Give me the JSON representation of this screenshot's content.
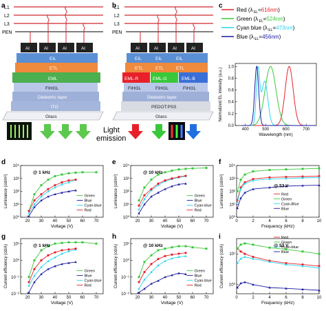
{
  "labels": {
    "a": "a",
    "b": "b",
    "c": "c",
    "d": "d",
    "e": "e",
    "f": "f",
    "g": "g",
    "h": "h",
    "i": "i"
  },
  "schematic": {
    "lines": [
      "L1",
      "L2",
      "L3",
      "PEN"
    ],
    "al": "Al",
    "layers_a": [
      "EIL",
      "ETL",
      "EML",
      "FIHGL",
      "Dielectric layer",
      "ITO",
      "Glass"
    ],
    "layers_b": [
      "EIL",
      "ETL",
      "EML-R",
      "EML-G",
      "EML-B",
      "FIHGL",
      "Dielectric layer",
      "PEDOT:PSS",
      "Glass"
    ],
    "light_emission": "Light\nemission",
    "light_1": "Light",
    "light_2": "emission"
  },
  "colors": {
    "red": "#e8202a",
    "green": "#39c83a",
    "cyan": "#2ad5f0",
    "blue": "#1a1aa0",
    "eil": "#5b8fd4",
    "etl": "#f08a3c",
    "eml": "#4caf50",
    "fihgl": "#b9c7e8",
    "diel": "#c7cfe6",
    "ito": "#a5b6dc"
  },
  "chart_data": [
    {
      "id": "c",
      "type": "line",
      "xlabel": "Wavelength (nm)",
      "ylabel": "Normalized EL intensity (a.u.)",
      "xlim": [
        350,
        750
      ],
      "ylim": [
        0,
        1.05
      ],
      "xticks": [
        "400",
        "500",
        "600",
        "700"
      ],
      "yticks": [
        "0.0",
        "0.2",
        "0.4",
        "0.6",
        "0.8",
        "1.0"
      ],
      "legend": [
        {
          "name": "Red (λ",
          "sub": "EL",
          "eq": "=",
          "val": "616nm"
        },
        {
          "name": "Green (λ",
          "sub": "EL",
          "eq": "=",
          "val": "524nm"
        },
        {
          "name": "Cyan blue (λ",
          "sub": "EL",
          "eq": "=",
          "val": "473nm"
        },
        {
          "name": "Blue (λ",
          "sub": "EL",
          "eq": "=",
          "val": "456nm"
        }
      ],
      "series": [
        {
          "name": "Red",
          "peak": 616,
          "width": 28
        },
        {
          "name": "Green",
          "peak": 524,
          "width": 38
        },
        {
          "name": "Cyan blue",
          "peak": 473,
          "width": 30
        },
        {
          "name": "Blue",
          "peak": 456,
          "width": 14
        }
      ]
    },
    {
      "id": "d",
      "type": "line",
      "annotation": "@ 1 kHz",
      "xlabel": "Voltage (V)",
      "ylabel": "Luminance (cd/m²)",
      "xlim": [
        15,
        75
      ],
      "ylim_log": [
        0,
        4
      ],
      "xticks": [
        "20",
        "30",
        "40",
        "50",
        "60",
        "70"
      ],
      "yticks": [
        "10⁰",
        "10¹",
        "10²",
        "10³",
        "10⁴"
      ],
      "legend": [
        "Green",
        "Blue",
        "Cyan-blue",
        "Red"
      ],
      "series": [
        {
          "name": "Green",
          "x": [
            21,
            25,
            30,
            35,
            40,
            45,
            50,
            55,
            60,
            70
          ],
          "y": [
            3,
            60,
            300,
            800,
            1500,
            2000,
            2500,
            2800,
            3000,
            3000
          ]
        },
        {
          "name": "Blue",
          "x": [
            21,
            25,
            30,
            35,
            40,
            45,
            50,
            55
          ],
          "y": [
            1.2,
            6,
            20,
            40,
            60,
            80,
            100,
            120
          ]
        },
        {
          "name": "Cyan-blue",
          "x": [
            21,
            25,
            30,
            35,
            40,
            45,
            50,
            55
          ],
          "y": [
            2,
            10,
            40,
            100,
            200,
            350,
            500,
            800
          ]
        },
        {
          "name": "Red",
          "x": [
            21,
            25,
            30,
            35,
            40,
            45,
            50,
            55
          ],
          "y": [
            3,
            20,
            60,
            150,
            300,
            500,
            700,
            800
          ]
        }
      ]
    },
    {
      "id": "e",
      "type": "line",
      "annotation": "@ 10 kHz",
      "xlabel": "Voltage (V)",
      "ylabel": "Luminance (cd/m²)",
      "xlim": [
        15,
        75
      ],
      "ylim_log": [
        0,
        4
      ],
      "xticks": [
        "20",
        "30",
        "40",
        "50",
        "60",
        "70"
      ],
      "yticks": [
        "10⁰",
        "10¹",
        "10²",
        "10³",
        "10⁴"
      ],
      "legend": [
        "Green",
        "Blue",
        "Cyan-blue",
        "Red"
      ],
      "series": [
        {
          "name": "Green",
          "x": [
            21,
            25,
            30,
            35,
            40,
            45,
            50,
            55,
            60,
            70
          ],
          "y": [
            20,
            200,
            800,
            2000,
            3000,
            4000,
            5000,
            5500,
            6000,
            6500
          ]
        },
        {
          "name": "Blue",
          "x": [
            21,
            25,
            30,
            35,
            40,
            45,
            50,
            55
          ],
          "y": [
            2,
            10,
            40,
            80,
            150,
            250,
            350,
            400
          ]
        },
        {
          "name": "Cyan-blue",
          "x": [
            21,
            25,
            30,
            35,
            40,
            45,
            50,
            55
          ],
          "y": [
            4,
            25,
            120,
            300,
            600,
            900,
            1200,
            1500
          ]
        },
        {
          "name": "Red",
          "x": [
            21,
            25,
            30,
            35,
            40,
            45,
            50,
            55
          ],
          "y": [
            8,
            50,
            150,
            400,
            700,
            1000,
            1300,
            1600
          ]
        }
      ]
    },
    {
      "id": "f",
      "type": "line",
      "annotation": "@ 53 V",
      "xlabel": "Frequency (kHz)",
      "ylabel": "Luminance (cd/m²)",
      "xlim": [
        0,
        10
      ],
      "ylim_log": [
        0,
        4
      ],
      "xticks": [
        "0",
        "2",
        "4",
        "6",
        "8",
        "10"
      ],
      "yticks": [
        "10⁰",
        "10¹",
        "10²",
        "10³",
        "10⁴"
      ],
      "legend": [
        "Red",
        "Green",
        "Cyan-Blue",
        "Blue"
      ],
      "series": [
        {
          "name": "Red",
          "x": [
            0.1,
            0.5,
            1,
            2,
            4,
            6,
            8,
            10
          ],
          "y": [
            20,
            200,
            500,
            900,
            1200,
            1300,
            1400,
            1500
          ]
        },
        {
          "name": "Green",
          "x": [
            0.1,
            0.5,
            1,
            2,
            4,
            6,
            8,
            10
          ],
          "y": [
            100,
            800,
            2000,
            3500,
            4500,
            5000,
            5500,
            6000
          ]
        },
        {
          "name": "Cyan-Blue",
          "x": [
            0.1,
            0.5,
            1,
            2,
            4,
            6,
            8,
            10
          ],
          "y": [
            15,
            150,
            400,
            700,
            900,
            1000,
            1100,
            1200
          ]
        },
        {
          "name": "Blue",
          "x": [
            0.1,
            0.5,
            1,
            2,
            4,
            6,
            8,
            10
          ],
          "y": [
            5,
            30,
            80,
            150,
            200,
            250,
            280,
            300
          ]
        }
      ]
    },
    {
      "id": "g",
      "type": "line",
      "annotation": "@ 1 kHz",
      "xlabel": "Voltage (V)",
      "ylabel": "Current efficiency (cd/A)",
      "xlim": [
        15,
        75
      ],
      "ylim_log": [
        -2,
        1.3
      ],
      "xticks": [
        "20",
        "30",
        "40",
        "50",
        "60",
        "70"
      ],
      "yticks": [
        "10⁻²",
        "10⁻¹",
        "10⁰",
        "10¹"
      ],
      "legend": [
        "Green",
        "Blue",
        "Cyan-blue",
        "Red"
      ],
      "series": [
        {
          "name": "Green",
          "x": [
            21,
            25,
            30,
            35,
            40,
            45,
            50,
            55,
            60,
            70
          ],
          "y": [
            0.1,
            1,
            4,
            7,
            10,
            11,
            12,
            12,
            12,
            10
          ]
        },
        {
          "name": "Blue",
          "x": [
            21,
            25,
            30,
            35,
            40,
            45,
            50,
            55
          ],
          "y": [
            0.012,
            0.05,
            0.15,
            0.3,
            0.45,
            0.6,
            0.7,
            0.8
          ]
        },
        {
          "name": "Cyan-blue",
          "x": [
            21,
            25,
            30,
            35,
            40,
            45,
            50,
            55
          ],
          "y": [
            0.03,
            0.12,
            0.4,
            0.9,
            1.5,
            2.5,
            3.5,
            4.5
          ]
        },
        {
          "name": "Red",
          "x": [
            21,
            25,
            30,
            35,
            40,
            45,
            50,
            55
          ],
          "y": [
            0.05,
            0.3,
            1,
            2,
            3,
            4,
            4.5,
            5
          ]
        }
      ]
    },
    {
      "id": "h",
      "type": "line",
      "annotation": "@ 10 kHz",
      "xlabel": "Voltage (V)",
      "ylabel": "Current efficiency (cd/A)",
      "xlim": [
        15,
        75
      ],
      "ylim_log": [
        -2,
        1.3
      ],
      "xticks": [
        "20",
        "30",
        "40",
        "50",
        "60",
        "70"
      ],
      "yticks": [
        "10⁻²",
        "10⁻¹",
        "10⁰",
        "10¹"
      ],
      "legend": [
        "Green",
        "Blue",
        "Cyan-blue",
        "Red"
      ],
      "series": [
        {
          "name": "Green",
          "x": [
            21,
            25,
            30,
            35,
            40,
            45,
            50,
            55,
            60,
            70
          ],
          "y": [
            0.1,
            0.8,
            2,
            4,
            5,
            6,
            7,
            7,
            6,
            5
          ]
        },
        {
          "name": "Blue",
          "x": [
            21,
            25,
            30,
            35,
            40,
            45,
            50,
            55
          ],
          "y": [
            0.012,
            0.02,
            0.04,
            0.06,
            0.1,
            0.13,
            0.17,
            0.15
          ]
        },
        {
          "name": "Cyan-blue",
          "x": [
            21,
            25,
            30,
            35,
            40,
            45,
            50,
            55
          ],
          "y": [
            0.02,
            0.07,
            0.2,
            0.5,
            0.9,
            1.3,
            1.6,
            1.8
          ]
        },
        {
          "name": "Red",
          "x": [
            21,
            25,
            30,
            35,
            40,
            45,
            50,
            55
          ],
          "y": [
            0.05,
            0.2,
            0.6,
            1.2,
            1.8,
            2.2,
            2.5,
            2.8
          ]
        }
      ]
    },
    {
      "id": "i",
      "type": "line",
      "annotation": "@ 53 V",
      "xlabel": "Frequency (kHz)",
      "ylabel": "Current efficiency (cd/A)",
      "xlim": [
        0,
        10
      ],
      "ylim_log": [
        -0.3,
        1.5
      ],
      "xticks": [
        "0",
        "2",
        "4",
        "6",
        "8",
        "10"
      ],
      "yticks": [
        "10⁰",
        "10¹"
      ],
      "legend": [
        "Red",
        "Green",
        "Cyan-blue",
        "Blue"
      ],
      "series": [
        {
          "name": "Red",
          "x": [
            0.1,
            0.5,
            1,
            2,
            4,
            6,
            8,
            10
          ],
          "y": [
            15,
            12,
            10,
            8,
            6,
            5,
            4.5,
            4
          ]
        },
        {
          "name": "Green",
          "x": [
            0.1,
            0.5,
            1,
            2,
            4,
            6,
            8,
            10
          ],
          "y": [
            15,
            20,
            22,
            20,
            16,
            14,
            12,
            10
          ]
        },
        {
          "name": "Cyan-blue",
          "x": [
            0.1,
            0.5,
            1,
            2,
            4,
            6,
            8,
            10
          ],
          "y": [
            5,
            7,
            8,
            7,
            5.5,
            4.5,
            4,
            3.5
          ]
        },
        {
          "name": "Blue",
          "x": [
            0.1,
            0.5,
            1,
            2,
            4,
            6,
            8,
            10
          ],
          "y": [
            0.8,
            1.1,
            1.2,
            1.0,
            0.8,
            0.75,
            0.7,
            0.65
          ]
        }
      ]
    }
  ]
}
